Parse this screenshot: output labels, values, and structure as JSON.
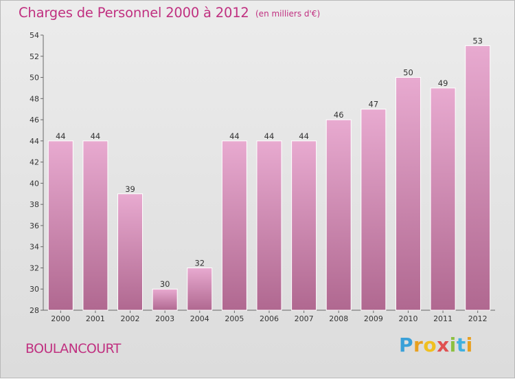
{
  "header": {
    "title": "Charges de Personnel 2000 à 2012",
    "subtitle": "(en milliers d'€)"
  },
  "footer": {
    "city": "BOULANCOURT",
    "brand_letters": [
      "P",
      "r",
      "o",
      "x",
      "i",
      "t",
      "i"
    ],
    "brand_colors": [
      "#3aa0d8",
      "#e8a020",
      "#f0c020",
      "#e05050",
      "#8cc040",
      "#40b0e0",
      "#e8a020"
    ]
  },
  "colors": {
    "bar_light": "#e8aad0",
    "bar_dark": "#b06890",
    "text_accent": "#c03080"
  },
  "chart_data": {
    "type": "bar",
    "title": "Charges de Personnel 2000 à 2012",
    "subtitle": "(en milliers d'€)",
    "xlabel": "",
    "ylabel": "",
    "categories": [
      "2000",
      "2001",
      "2002",
      "2003",
      "2004",
      "2005",
      "2006",
      "2007",
      "2008",
      "2009",
      "2010",
      "2011",
      "2012"
    ],
    "values": [
      44,
      44,
      39,
      30,
      32,
      44,
      44,
      44,
      46,
      47,
      50,
      49,
      53
    ],
    "ylim": [
      28,
      54
    ],
    "yticks": [
      28,
      30,
      32,
      34,
      36,
      38,
      40,
      42,
      44,
      46,
      48,
      50,
      52,
      54
    ],
    "grid": false,
    "legend": "none"
  }
}
